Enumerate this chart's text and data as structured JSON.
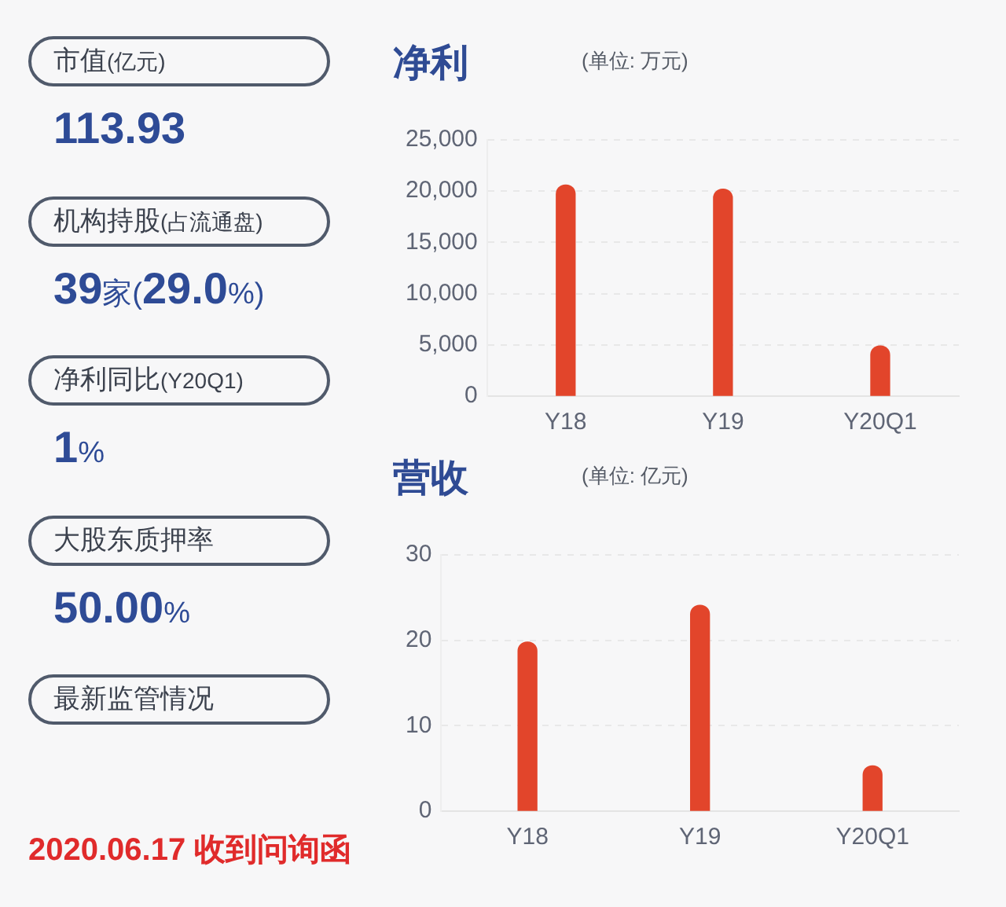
{
  "chart_data": [
    {
      "type": "other",
      "annotations": [
        "市值(亿元)",
        "113.93",
        "机构持股(占流通盘)",
        "39家(29.0%)",
        "净利同比(Y20Q1)",
        "1%",
        "大股东质押率",
        "50.00%",
        "最新监管情况",
        "2020.06.17 收到问询函"
      ]
    },
    {
      "type": "bar",
      "title": "净利",
      "subtitle": "(单位: 万元)",
      "categories": [
        "Y18",
        "Y19",
        "Y20Q1"
      ],
      "values": [
        20600,
        20200,
        4900
      ],
      "color": "#e2452b",
      "ylim": [
        0,
        25000
      ],
      "yticks": [
        0,
        {
          "value": 5000,
          "label": "5,000"
        },
        {
          "value": 10000,
          "label": "10,000"
        },
        {
          "value": 15000,
          "label": "15,000"
        },
        {
          "value": 20000,
          "label": "20,000"
        },
        {
          "value": 25000,
          "label": "25,000"
        }
      ],
      "grid": "y"
    },
    {
      "type": "bar",
      "title": "营收",
      "subtitle": "(单位: 亿元)",
      "categories": [
        "Y18",
        "Y19",
        "Y20Q1"
      ],
      "values": [
        19.8,
        24.1,
        5.3
      ],
      "color": "#e2452b",
      "ylim": [
        0,
        30
      ],
      "yticks": [
        0,
        10,
        20,
        30
      ],
      "grid": "y"
    }
  ]
}
